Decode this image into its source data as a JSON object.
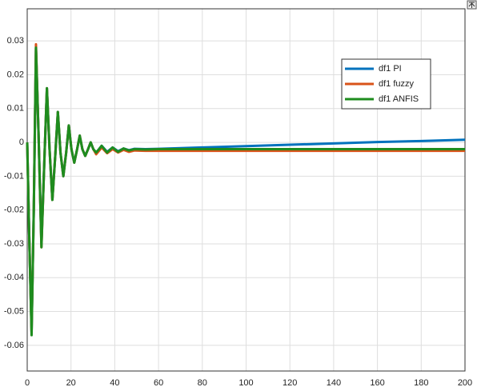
{
  "chart_data": {
    "type": "line",
    "x": [
      0,
      1,
      2,
      3,
      4,
      5.2,
      6.5,
      7.8,
      9,
      10.2,
      11.5,
      12.8,
      14,
      15.2,
      16.5,
      17.8,
      19,
      20.2,
      21.5,
      22.8,
      24,
      25.2,
      26.5,
      27.8,
      29,
      30.2,
      31.5,
      32.8,
      34,
      36.5,
      39,
      41.5,
      44,
      46.5,
      49,
      54,
      60,
      80,
      100,
      120,
      140,
      160,
      180,
      200
    ],
    "series": [
      {
        "name": "df1 PI",
        "color": "#0072bd",
        "values": [
          0,
          -0.03,
          -0.056,
          -0.02,
          0.028,
          0.002,
          -0.03,
          -0.006,
          0.016,
          -0.002,
          -0.017,
          -0.004,
          0.009,
          -0.003,
          -0.01,
          -0.003,
          0.005,
          -0.002,
          -0.006,
          -0.002,
          0.002,
          -0.002,
          -0.004,
          -0.002,
          0.0,
          -0.002,
          -0.003,
          -0.002,
          -0.001,
          -0.0028,
          -0.0015,
          -0.0026,
          -0.0018,
          -0.0023,
          -0.0019,
          -0.002,
          -0.0019,
          -0.0015,
          -0.0011,
          -0.0007,
          -0.0003,
          0.0001,
          0.0004,
          0.0008
        ]
      },
      {
        "name": "df1 fuzzy",
        "color": "#d95319",
        "values": [
          0,
          -0.03,
          -0.056,
          -0.02,
          0.029,
          0.002,
          -0.031,
          -0.006,
          0.016,
          -0.002,
          -0.017,
          -0.004,
          0.009,
          -0.003,
          -0.01,
          -0.003,
          0.005,
          -0.002,
          -0.006,
          -0.002,
          0.002,
          -0.002,
          -0.004,
          -0.002,
          0.0,
          -0.002,
          -0.0035,
          -0.0025,
          -0.0015,
          -0.0032,
          -0.002,
          -0.003,
          -0.0022,
          -0.0028,
          -0.0024,
          -0.0025,
          -0.0025,
          -0.0025,
          -0.0025,
          -0.0025,
          -0.0025,
          -0.0025,
          -0.0025,
          -0.0025
        ]
      },
      {
        "name": "df1 ANFIS",
        "color": "#1e8c1e",
        "values": [
          0,
          -0.03,
          -0.057,
          -0.02,
          0.028,
          0.002,
          -0.031,
          -0.006,
          0.016,
          -0.002,
          -0.017,
          -0.004,
          0.009,
          -0.003,
          -0.01,
          -0.003,
          0.005,
          -0.002,
          -0.006,
          -0.002,
          0.002,
          -0.002,
          -0.004,
          -0.002,
          0.0,
          -0.002,
          -0.003,
          -0.002,
          -0.001,
          -0.003,
          -0.0015,
          -0.0028,
          -0.0018,
          -0.0024,
          -0.002,
          -0.0021,
          -0.002,
          -0.002,
          -0.002,
          -0.002,
          -0.002,
          -0.002,
          -0.002,
          -0.002
        ]
      }
    ],
    "xlim": [
      0,
      200
    ],
    "xticks": [
      0,
      20,
      40,
      60,
      80,
      100,
      120,
      140,
      160,
      180,
      200
    ],
    "ylim": [
      -0.0676,
      0.0395
    ],
    "yticks": [
      -0.06,
      -0.05,
      -0.04,
      -0.03,
      -0.02,
      -0.01,
      0,
      0.01,
      0.02,
      0.03
    ],
    "grid": true,
    "legend": "upper right"
  }
}
